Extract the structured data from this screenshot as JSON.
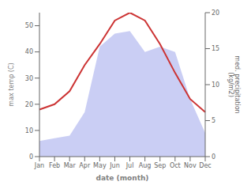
{
  "chart_data": {
    "type": "line",
    "categories": [
      "Jan",
      "Feb",
      "Mar",
      "Apr",
      "May",
      "Jun",
      "Jul",
      "Aug",
      "Sep",
      "Oct",
      "Nov",
      "Dec"
    ],
    "series": [
      {
        "type": "area",
        "color": "#b8bef0",
        "values": [
          6,
          7,
          8,
          17,
          42,
          47,
          48,
          40,
          42,
          40,
          22,
          9
        ]
      },
      {
        "type": "line",
        "color": "#cc3333",
        "values": [
          18,
          20,
          25,
          35,
          43,
          52,
          55,
          52,
          43,
          32,
          22,
          17
        ]
      }
    ],
    "xlabel": "date (month)",
    "ylabel": "max temp (C)",
    "y2label": "med. precipitation\n(kg/m2)",
    "ylim": [
      0,
      55
    ],
    "yticks": [
      0,
      10,
      20,
      30,
      40,
      50
    ],
    "y2lim": [
      0,
      20
    ],
    "y2ticks": [
      0,
      5,
      10,
      15,
      20
    ],
    "grid": false
  }
}
